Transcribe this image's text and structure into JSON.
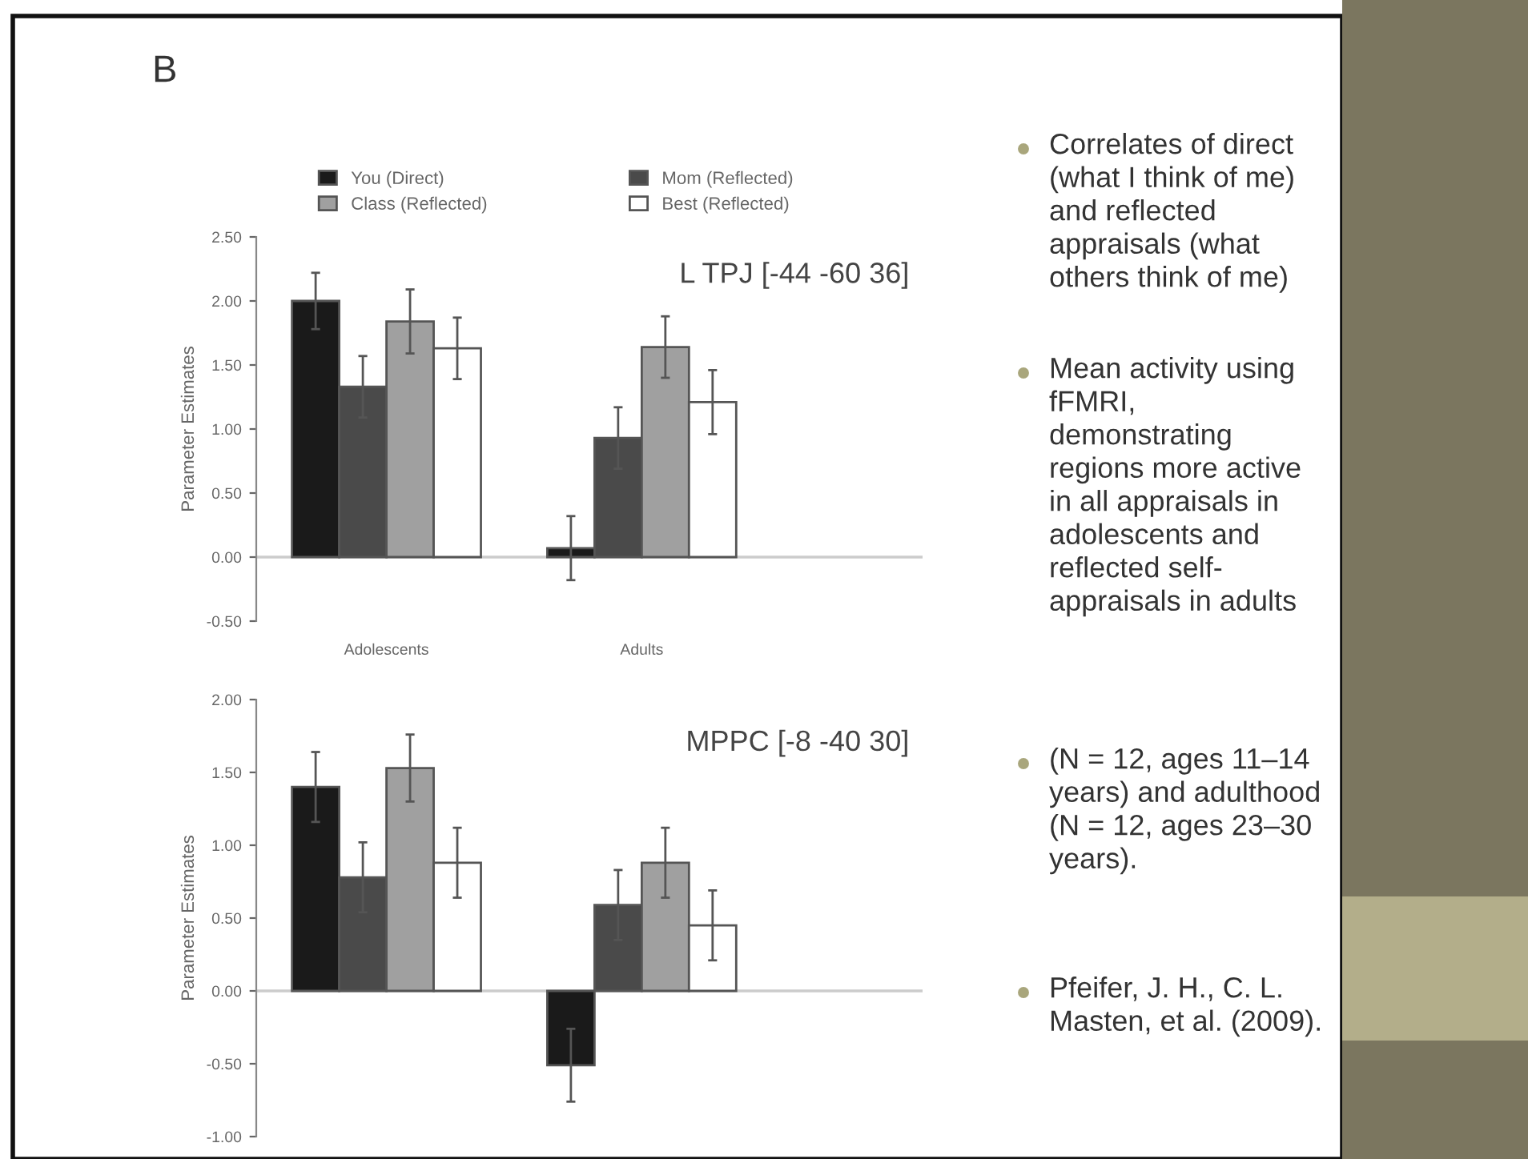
{
  "chart_data": [
    {
      "type": "bar",
      "ylabel": "Parameter Estimates",
      "legend": "top",
      "grid": false,
      "ref_lines": [
        {
          "axis": "y",
          "value": 0,
          "color": "#cccccc"
        }
      ],
      "annotations": [
        "B",
        "L TPJ [-44 -60 36]"
      ],
      "categories": [
        "Adolescents",
        "Adults"
      ],
      "ylim": [
        -0.5,
        2.5
      ],
      "yticks": [
        {
          "value": -0.5,
          "label": "-0.50"
        },
        {
          "value": 0,
          "label": "0.00"
        },
        {
          "value": 0.5,
          "label": "0.50"
        },
        {
          "value": 1,
          "label": "1.00"
        },
        {
          "value": 1.5,
          "label": "1.50"
        },
        {
          "value": 2,
          "label": "2.00"
        },
        {
          "value": 2.5,
          "label": "2.50"
        }
      ],
      "series": [
        {
          "name": "You (Direct)",
          "color": "#1a1a1a",
          "values": [
            2.0,
            0.07
          ],
          "errors": [
            0.22,
            0.25
          ]
        },
        {
          "name": "Mom (Reflected)",
          "color": "#4a4a4a",
          "values": [
            1.33,
            0.93
          ],
          "errors": [
            0.24,
            0.24
          ]
        },
        {
          "name": "Class (Reflected)",
          "color": "#a0a0a0",
          "values": [
            1.84,
            1.64
          ],
          "errors": [
            0.25,
            0.24
          ]
        },
        {
          "name": "Best (Reflected)",
          "color": "#ffffff",
          "values": [
            1.63,
            1.21
          ],
          "errors": [
            0.24,
            0.25
          ]
        }
      ]
    },
    {
      "type": "bar",
      "ylabel": "Parameter Estimates",
      "grid": false,
      "ref_lines": [
        {
          "axis": "y",
          "value": 0,
          "color": "#cccccc"
        }
      ],
      "annotations": [
        "MPPC [-8 -40 30]"
      ],
      "categories": [
        null,
        null
      ],
      "ylim": [
        -1.0,
        2.0
      ],
      "yticks": [
        {
          "value": -1,
          "label": "-1.00"
        },
        {
          "value": -0.5,
          "label": "-0.50"
        },
        {
          "value": 0,
          "label": "0.00"
        },
        {
          "value": 0.5,
          "label": "0.50"
        },
        {
          "value": 1,
          "label": "1.00"
        },
        {
          "value": 1.5,
          "label": "1.50"
        },
        {
          "value": 2,
          "label": "2.00"
        }
      ],
      "series": [
        {
          "color": "#1a1a1a",
          "values": [
            1.4,
            -0.51
          ],
          "errors": [
            0.24,
            0.25
          ]
        },
        {
          "color": "#4a4a4a",
          "values": [
            0.78,
            0.59
          ],
          "errors": [
            0.24,
            0.24
          ]
        },
        {
          "color": "#a0a0a0",
          "values": [
            1.53,
            0.88
          ],
          "errors": [
            0.23,
            0.24
          ]
        },
        {
          "color": "#ffffff",
          "values": [
            0.88,
            0.45
          ],
          "errors": [
            0.24,
            0.24
          ]
        }
      ]
    },
    {
      "type": "other",
      "annotations": [
        "Correlates of direct\n(what I think of me)\nand reflected\nappraisals (what\nothers think of me)",
        "Mean activity using\nfFMRI,\ndemonstrating\nregions more active\nin all appraisals in\nadolescents and\nreflected self-\nappraisals in adults",
        "(N = 12, ages 11–14\nyears) and adulthood\n(N = 12, ages 23–30\nyears).",
        "Pfeifer, J. H., C. L.\nMasten, et al. (2009)."
      ]
    }
  ]
}
